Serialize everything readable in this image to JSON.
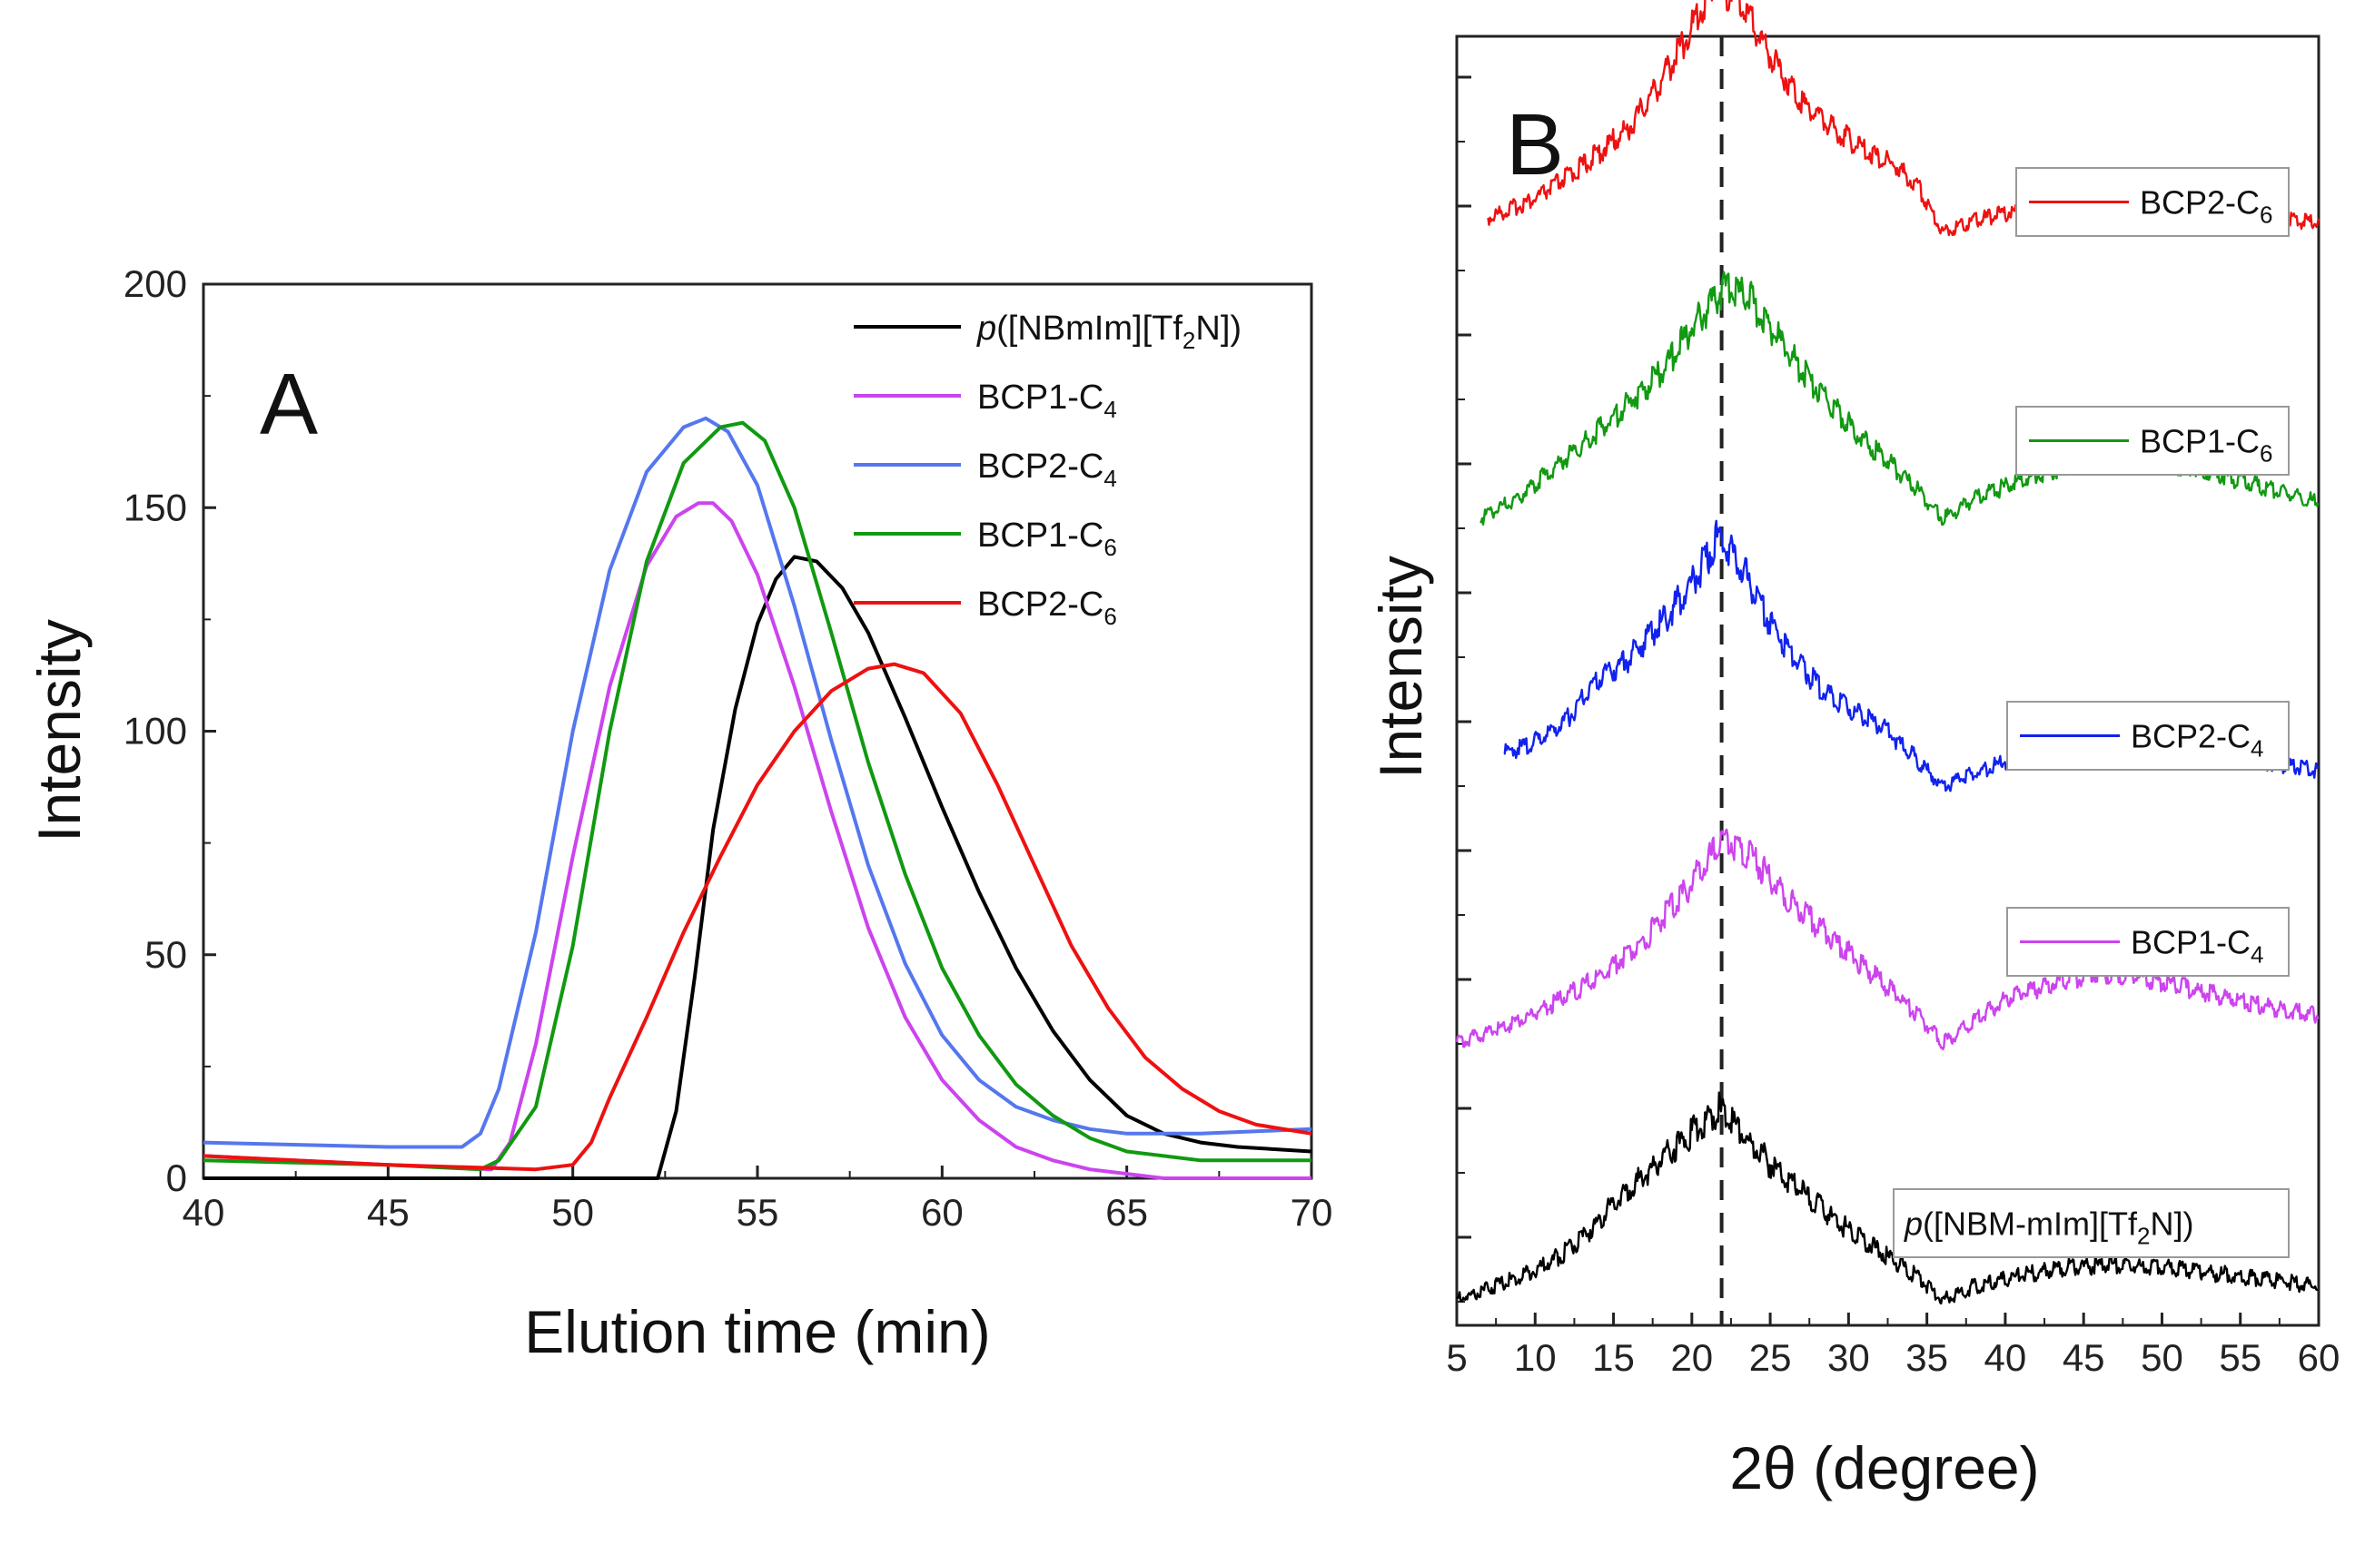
{
  "chart_data": [
    {
      "panel": "A",
      "type": "line",
      "title": "A",
      "xlabel": "Elution time (min)",
      "ylabel": "Intensity",
      "xlim": [
        40,
        70
      ],
      "ylim": [
        0,
        200
      ],
      "xticks": [
        40,
        45,
        50,
        55,
        60,
        65,
        70
      ],
      "yticks": [
        0,
        50,
        100,
        150,
        200
      ],
      "legend_position": "top-right",
      "series": [
        {
          "name": "p([NBmIm][Tf2N])",
          "color": "#000000",
          "x": [
            40,
            52.3,
            52.8,
            53.3,
            53.8,
            54.4,
            55.0,
            55.5,
            56.0,
            56.6,
            57.3,
            58.0,
            59.0,
            60.0,
            61.0,
            62.0,
            63.0,
            64.0,
            65.0,
            66.0,
            67.0,
            68.0,
            70.0
          ],
          "y": [
            0,
            0,
            15,
            45,
            78,
            105,
            124,
            134,
            139,
            138,
            132,
            122,
            103,
            83,
            64,
            47,
            33,
            22,
            14,
            10,
            8,
            7,
            6
          ]
        },
        {
          "name": "BCP1-C4",
          "color": "#cc44ee",
          "x": [
            40,
            45,
            47.8,
            48.3,
            49.0,
            50.0,
            51.0,
            52.0,
            52.8,
            53.4,
            53.8,
            54.3,
            55.0,
            56.0,
            57.0,
            58.0,
            59.0,
            60.0,
            61.0,
            62.0,
            63.0,
            64.0,
            65.0,
            66.0,
            67.0,
            70.0
          ],
          "y": [
            5,
            3,
            2,
            8,
            30,
            72,
            110,
            137,
            148,
            151,
            151,
            147,
            135,
            110,
            82,
            56,
            36,
            22,
            13,
            7,
            4,
            2,
            1,
            0,
            0,
            0
          ]
        },
        {
          "name": "BCP2-C4",
          "color": "#5577ee",
          "x": [
            40,
            45,
            47.0,
            47.5,
            48.0,
            49.0,
            50.0,
            51.0,
            52.0,
            53.0,
            53.6,
            54.2,
            55.0,
            56.0,
            57.0,
            58.0,
            59.0,
            60.0,
            61.0,
            62.0,
            63.0,
            64.0,
            65.0,
            66.0,
            67.0,
            70.0
          ],
          "y": [
            8,
            7,
            7,
            10,
            20,
            55,
            100,
            136,
            158,
            168,
            170,
            167,
            155,
            128,
            98,
            70,
            48,
            32,
            22,
            16,
            13,
            11,
            10,
            10,
            10,
            11
          ]
        },
        {
          "name": "BCP1-C6",
          "color": "#119911",
          "x": [
            40,
            45,
            47.5,
            48.0,
            49.0,
            50.0,
            51.0,
            52.0,
            53.0,
            54.0,
            54.6,
            55.2,
            56.0,
            57.0,
            58.0,
            59.0,
            60.0,
            61.0,
            62.0,
            63.0,
            64.0,
            65.0,
            66.0,
            67.0,
            70.0
          ],
          "y": [
            4,
            3,
            2,
            4,
            16,
            52,
            100,
            138,
            160,
            168,
            169,
            165,
            150,
            122,
            93,
            68,
            47,
            32,
            21,
            14,
            9,
            6,
            5,
            4,
            4
          ]
        },
        {
          "name": "BCP2-C6",
          "color": "#ee1111",
          "x": [
            40,
            45,
            49.0,
            50.0,
            50.5,
            51.0,
            52.0,
            53.0,
            54.0,
            55.0,
            56.0,
            57.0,
            58.0,
            58.7,
            59.5,
            60.5,
            61.5,
            62.5,
            63.5,
            64.5,
            65.5,
            66.5,
            67.5,
            68.5,
            70.0
          ],
          "y": [
            5,
            3,
            2,
            3,
            8,
            18,
            36,
            55,
            72,
            88,
            100,
            109,
            114,
            115,
            113,
            104,
            88,
            70,
            52,
            38,
            27,
            20,
            15,
            12,
            10
          ]
        }
      ]
    },
    {
      "panel": "B",
      "type": "line",
      "title": "B",
      "xlabel": "2θ (degree)",
      "ylabel": "Intensity",
      "xlim": [
        5,
        60
      ],
      "xticks": [
        5,
        10,
        15,
        20,
        25,
        30,
        35,
        40,
        45,
        50,
        55,
        60
      ],
      "dashed_reference_x": 21.9,
      "y_tick_labels": "none",
      "series": [
        {
          "name": "BCP2-C6",
          "color": "#ee1111",
          "offset": 4,
          "x": [
            7,
            10,
            13,
            16,
            18,
            20,
            21.5,
            23,
            25,
            27,
            29,
            31,
            33,
            34.5,
            36,
            38,
            41,
            44,
            46,
            49,
            52,
            56,
            60
          ],
          "y": [
            0.05,
            0.12,
            0.24,
            0.38,
            0.55,
            0.75,
            0.92,
            0.85,
            0.65,
            0.48,
            0.38,
            0.3,
            0.24,
            0.16,
            0.0,
            0.04,
            0.08,
            0.11,
            0.12,
            0.11,
            0.09,
            0.06,
            0.03
          ]
        },
        {
          "name": "BCP1-C6",
          "color": "#119911",
          "offset": 3,
          "x": [
            6.5,
            9,
            12,
            15,
            18,
            20,
            22,
            23.5,
            25,
            27,
            29,
            31,
            33,
            34.5,
            36,
            38,
            41,
            44,
            47,
            50,
            53,
            56,
            60
          ],
          "y": [
            0.0,
            0.08,
            0.22,
            0.36,
            0.52,
            0.68,
            0.82,
            0.8,
            0.68,
            0.53,
            0.4,
            0.28,
            0.18,
            0.1,
            0.0,
            0.07,
            0.14,
            0.19,
            0.21,
            0.2,
            0.17,
            0.12,
            0.06
          ]
        },
        {
          "name": "BCP2-C4",
          "color": "#1122ee",
          "offset": 2,
          "x": [
            8,
            10,
            12,
            14,
            16,
            18,
            20,
            21.8,
            23,
            25,
            26,
            28,
            30,
            32,
            34,
            36,
            38,
            40,
            43,
            46,
            50,
            55,
            60
          ],
          "y": [
            0.12,
            0.16,
            0.24,
            0.38,
            0.46,
            0.58,
            0.72,
            0.9,
            0.8,
            0.58,
            0.5,
            0.36,
            0.28,
            0.22,
            0.12,
            0.0,
            0.05,
            0.09,
            0.12,
            0.13,
            0.12,
            0.1,
            0.06
          ]
        },
        {
          "name": "BCP1-C4",
          "color": "#cc44ee",
          "offset": 1,
          "x": [
            5,
            8,
            11,
            14,
            17,
            19,
            21,
            22,
            23.5,
            25,
            27,
            29,
            31,
            33,
            34.5,
            36,
            38,
            40,
            43,
            46,
            49,
            53,
            57,
            60
          ],
          "y": [
            0.0,
            0.06,
            0.14,
            0.24,
            0.38,
            0.52,
            0.66,
            0.76,
            0.7,
            0.6,
            0.48,
            0.38,
            0.28,
            0.18,
            0.1,
            0.0,
            0.08,
            0.16,
            0.22,
            0.26,
            0.24,
            0.18,
            0.13,
            0.1
          ]
        },
        {
          "name": "p([NBM-mIm][Tf2N])",
          "color": "#000000",
          "offset": 0,
          "x": [
            5,
            8,
            11,
            13,
            15,
            17,
            19,
            20.5,
            21.7,
            23,
            25,
            27,
            29,
            31,
            33,
            34.5,
            36,
            38,
            41,
            44,
            47,
            50,
            53,
            56,
            60
          ],
          "y": [
            0.0,
            0.06,
            0.14,
            0.22,
            0.36,
            0.46,
            0.56,
            0.64,
            0.7,
            0.62,
            0.5,
            0.4,
            0.3,
            0.22,
            0.14,
            0.08,
            0.0,
            0.05,
            0.09,
            0.12,
            0.13,
            0.12,
            0.1,
            0.08,
            0.05
          ]
        }
      ]
    }
  ],
  "legend_a": [
    {
      "pre": "p",
      "mid": "([NBmIm][Tf",
      "sub": "2",
      "post": "N])",
      "color": "#000000"
    },
    {
      "pre": "",
      "mid": "BCP1-C",
      "sub": "4",
      "post": "",
      "color": "#cc44ee"
    },
    {
      "pre": "",
      "mid": "BCP2-C",
      "sub": "4",
      "post": "",
      "color": "#5577ee"
    },
    {
      "pre": "",
      "mid": "BCP1-C",
      "sub": "6",
      "post": "",
      "color": "#119911"
    },
    {
      "pre": "",
      "mid": "BCP2-C",
      "sub": "6",
      "post": "",
      "color": "#ee1111"
    }
  ],
  "legend_b": [
    {
      "pre": "",
      "mid": "BCP2-C",
      "sub": "6",
      "post": "",
      "color": "#ee1111"
    },
    {
      "pre": "",
      "mid": "BCP1-C",
      "sub": "6",
      "post": "",
      "color": "#119911"
    },
    {
      "pre": "",
      "mid": "BCP2-C",
      "sub": "4",
      "post": "",
      "color": "#1122ee"
    },
    {
      "pre": "",
      "mid": "BCP1-C",
      "sub": "4",
      "post": "",
      "color": "#cc44ee"
    },
    {
      "pre": "p",
      "mid": "([NBM-mIm][Tf",
      "sub": "2",
      "post": "N])",
      "color": "#000000"
    }
  ]
}
